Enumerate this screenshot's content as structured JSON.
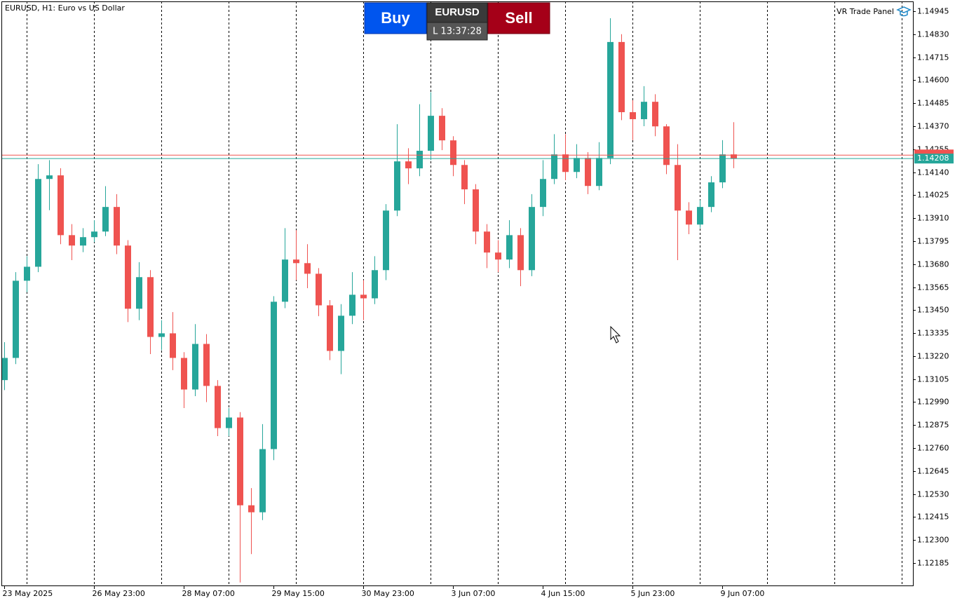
{
  "chart_data": {
    "type": "candlestick",
    "title": "EURUSD, H1:  Euro vs US Dollar",
    "panel_label": "VR Trade Panel",
    "buttons": {
      "buy": "Buy",
      "symbol": "EURUSD",
      "sell": "Sell",
      "time": "L 13:37:28"
    },
    "up_color": "#26a69a",
    "down_color": "#ef5350",
    "bid": 1.14208,
    "ask": 1.14225,
    "ylim": [
      1.12073,
      1.14994
    ],
    "yticks": [
      1.12185,
      {
        "value": 1.123,
        "label": "1.12300"
      },
      1.12415,
      {
        "value": 1.1253,
        "label": "1.12530"
      },
      1.12645,
      {
        "value": 1.1276,
        "label": "1.12760"
      },
      1.12875,
      {
        "value": 1.1299,
        "label": "1.12990"
      },
      1.13105,
      {
        "value": 1.1322,
        "label": "1.13220"
      },
      1.13335,
      {
        "value": 1.1345,
        "label": "1.13450"
      },
      1.13565,
      {
        "value": 1.1368,
        "label": "1.13680"
      },
      1.13795,
      {
        "value": 1.1391,
        "label": "1.13910"
      },
      1.14025,
      {
        "value": 1.1414,
        "label": "1.14140"
      },
      1.14255,
      {
        "value": 1.1437,
        "label": "1.14370"
      },
      1.14485,
      {
        "value": 1.146,
        "label": "1.14600"
      },
      1.14715,
      {
        "value": 1.1483,
        "label": "1.14830"
      },
      1.14945
    ],
    "xticks": [
      {
        "value": 0,
        "label": "23 May 2025"
      },
      {
        "value": 8,
        "label": "26 May 23:00"
      },
      {
        "value": 16,
        "label": "28 May 07:00"
      },
      {
        "value": 24,
        "label": "29 May 15:00"
      },
      {
        "value": 32,
        "label": "30 May 23:00"
      },
      {
        "value": 40,
        "label": "3 Jun 07:00"
      },
      {
        "value": 48,
        "label": "4 Jun 15:00"
      },
      {
        "value": 56,
        "label": "5 Jun 23:00"
      },
      {
        "value": 64,
        "label": "9 Jun 07:00"
      }
    ],
    "candles": [
      [
        1.131,
        1.1329,
        1.1305,
        1.13211
      ],
      [
        1.13211,
        1.1364,
        1.1318,
        1.13597
      ],
      [
        1.13597,
        1.1372,
        1.1354,
        1.13667
      ],
      [
        1.13667,
        1.1418,
        1.1364,
        1.14106
      ],
      [
        1.14106,
        1.142,
        1.1395,
        1.14124
      ],
      [
        1.14124,
        1.1416,
        1.1378,
        1.13825
      ],
      [
        1.13825,
        1.1388,
        1.137,
        1.13773
      ],
      [
        1.13773,
        1.1386,
        1.1374,
        1.13815
      ],
      [
        1.13815,
        1.139,
        1.1379,
        1.13843
      ],
      [
        1.13843,
        1.1407,
        1.1382,
        1.13966
      ],
      [
        1.13966,
        1.1403,
        1.1373,
        1.13773
      ],
      [
        1.13773,
        1.138,
        1.1339,
        1.13457
      ],
      [
        1.13457,
        1.1369,
        1.134,
        1.13615
      ],
      [
        1.13615,
        1.1365,
        1.1323,
        1.13316
      ],
      [
        1.13316,
        1.134,
        1.1325,
        1.13334
      ],
      [
        1.13334,
        1.1344,
        1.1315,
        1.13211
      ],
      [
        1.13211,
        1.1324,
        1.1296,
        1.13053
      ],
      [
        1.13053,
        1.1338,
        1.1302,
        1.13281
      ],
      [
        1.13281,
        1.1333,
        1.1299,
        1.13071
      ],
      [
        1.13071,
        1.131,
        1.1282,
        1.1286
      ],
      [
        1.1286,
        1.1296,
        1.1282,
        1.12913
      ],
      [
        1.12913,
        1.1294,
        1.12088,
        1.12474
      ],
      [
        1.12474,
        1.1256,
        1.1223,
        1.12439
      ],
      [
        1.12439,
        1.1288,
        1.124,
        1.12755
      ],
      [
        1.12755,
        1.1352,
        1.127,
        1.13492
      ],
      [
        1.13492,
        1.1386,
        1.1346,
        1.13703
      ],
      [
        1.13703,
        1.1385,
        1.136,
        1.13685
      ],
      [
        1.13685,
        1.1378,
        1.1356,
        1.13632
      ],
      [
        1.13632,
        1.1366,
        1.1342,
        1.13474
      ],
      [
        1.13474,
        1.135,
        1.132,
        1.13246
      ],
      [
        1.13246,
        1.1348,
        1.1313,
        1.13422
      ],
      [
        1.13422,
        1.1364,
        1.1338,
        1.13527
      ],
      [
        1.13527,
        1.136,
        1.134,
        1.13509
      ],
      [
        1.13509,
        1.1372,
        1.1348,
        1.1365
      ],
      [
        1.1365,
        1.1398,
        1.136,
        1.13948
      ],
      [
        1.13948,
        1.1438,
        1.1392,
        1.14194
      ],
      [
        1.14194,
        1.1426,
        1.1408,
        1.14159
      ],
      [
        1.14159,
        1.1448,
        1.1412,
        1.14247
      ],
      [
        1.14247,
        1.1454,
        1.142,
        1.14422
      ],
      [
        1.14422,
        1.1446,
        1.1425,
        1.14299
      ],
      [
        1.14299,
        1.1432,
        1.1412,
        1.14176
      ],
      [
        1.14176,
        1.142,
        1.1398,
        1.14054
      ],
      [
        1.14054,
        1.1408,
        1.1378,
        1.13843
      ],
      [
        1.13843,
        1.1388,
        1.1366,
        1.13738
      ],
      [
        1.13738,
        1.138,
        1.1364,
        1.13703
      ],
      [
        1.13703,
        1.139,
        1.1366,
        1.13825
      ],
      [
        1.13825,
        1.1386,
        1.1357,
        1.1365
      ],
      [
        1.1365,
        1.1403,
        1.1362,
        1.13966
      ],
      [
        1.13966,
        1.142,
        1.1392,
        1.14106
      ],
      [
        1.14106,
        1.1433,
        1.1408,
        1.14229
      ],
      [
        1.14229,
        1.1433,
        1.141,
        1.14141
      ],
      [
        1.14141,
        1.1428,
        1.1411,
        1.14211
      ],
      [
        1.14211,
        1.1424,
        1.1403,
        1.14071
      ],
      [
        1.14071,
        1.1429,
        1.1405,
        1.14211
      ],
      [
        1.14211,
        1.1491,
        1.1418,
        1.14791
      ],
      [
        1.14791,
        1.1483,
        1.144,
        1.1444
      ],
      [
        1.1444,
        1.145,
        1.143,
        1.14405
      ],
      [
        1.14405,
        1.1457,
        1.1437,
        1.14492
      ],
      [
        1.14492,
        1.1453,
        1.1432,
        1.14369
      ],
      [
        1.14369,
        1.1438,
        1.1413,
        1.14176
      ],
      [
        1.14176,
        1.1428,
        1.137,
        1.13948
      ],
      [
        1.13948,
        1.1399,
        1.1383,
        1.13878
      ],
      [
        1.13878,
        1.14,
        1.1386,
        1.13966
      ],
      [
        1.13966,
        1.1412,
        1.1394,
        1.14089
      ],
      [
        1.14089,
        1.143,
        1.1406,
        1.14229
      ],
      [
        1.14229,
        1.1439,
        1.1416,
        1.14208
      ]
    ]
  }
}
